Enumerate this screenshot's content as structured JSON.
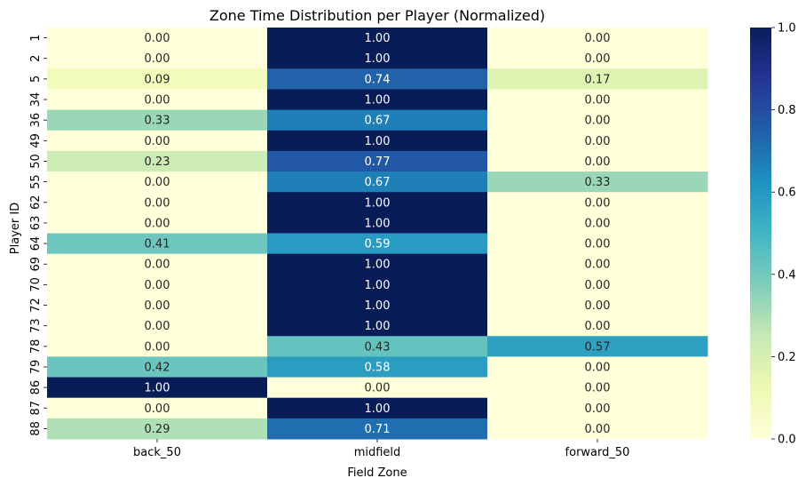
{
  "chart_data": {
    "type": "heatmap",
    "title": "Zone Time Distribution per Player (Normalized)",
    "xlabel": "Field Zone",
    "ylabel": "Player ID",
    "columns": [
      "back_50",
      "midfield",
      "forward_50"
    ],
    "rows": [
      "1",
      "2",
      "5",
      "34",
      "36",
      "49",
      "50",
      "55",
      "62",
      "63",
      "64",
      "69",
      "70",
      "72",
      "73",
      "78",
      "79",
      "86",
      "87",
      "88"
    ],
    "values": [
      [
        0.0,
        1.0,
        0.0
      ],
      [
        0.0,
        1.0,
        0.0
      ],
      [
        0.09,
        0.74,
        0.17
      ],
      [
        0.0,
        1.0,
        0.0
      ],
      [
        0.33,
        0.67,
        0.0
      ],
      [
        0.0,
        1.0,
        0.0
      ],
      [
        0.23,
        0.77,
        0.0
      ],
      [
        0.0,
        0.67,
        0.33
      ],
      [
        0.0,
        1.0,
        0.0
      ],
      [
        0.0,
        1.0,
        0.0
      ],
      [
        0.41,
        0.59,
        0.0
      ],
      [
        0.0,
        1.0,
        0.0
      ],
      [
        0.0,
        1.0,
        0.0
      ],
      [
        0.0,
        1.0,
        0.0
      ],
      [
        0.0,
        1.0,
        0.0
      ],
      [
        0.0,
        0.43,
        0.57
      ],
      [
        0.42,
        0.58,
        0.0
      ],
      [
        1.0,
        0.0,
        0.0
      ],
      [
        0.0,
        1.0,
        0.0
      ],
      [
        0.29,
        0.71,
        0.0
      ]
    ],
    "value_format": "0.00",
    "colormap": "YlGnBu",
    "colormap_stops": [
      "#ffffd9",
      "#edf8b1",
      "#c7e9b4",
      "#7fcdbb",
      "#41b6c4",
      "#1d91c0",
      "#225ea8",
      "#253494",
      "#081d58"
    ],
    "colorbar": {
      "range": [
        0.0,
        1.0
      ],
      "ticks": [
        "0.0",
        "0.2",
        "0.4",
        "0.6",
        "0.8",
        "1.0"
      ]
    }
  }
}
